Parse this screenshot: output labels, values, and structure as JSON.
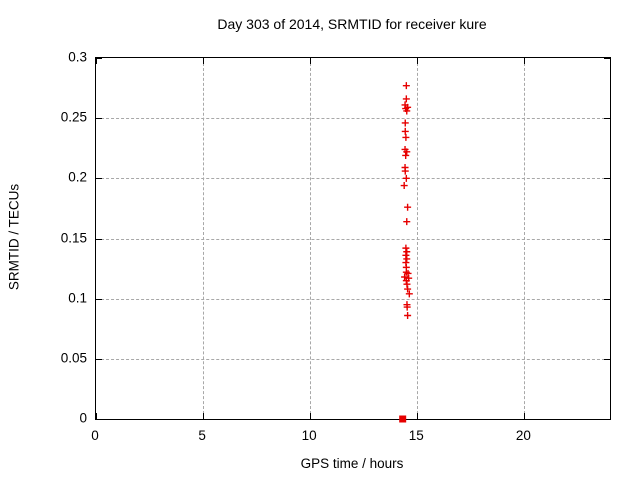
{
  "chart_data": {
    "type": "scatter",
    "title": "Day 303 of 2014, SRMTID for receiver kure",
    "xlabel": "GPS time / hours",
    "ylabel": "SRMTID / TECUs",
    "xlim": [
      0,
      24
    ],
    "ylim": [
      0,
      0.3
    ],
    "xticks": [
      0,
      5,
      10,
      15,
      20
    ],
    "xtick_labels": [
      "0",
      "5",
      "10",
      "15",
      "20"
    ],
    "yticks": [
      0,
      0.05,
      0.1,
      0.15,
      0.2,
      0.25,
      0.3
    ],
    "ytick_labels": [
      "0",
      "0.05",
      "0.1",
      "0.15",
      "0.2",
      "0.25",
      "0.3"
    ],
    "grid": true,
    "legend": "none",
    "colors": {
      "marker": "#e60000",
      "grid": "#a8a8a8",
      "border": "#000000",
      "background": "#ffffff"
    },
    "series": [
      {
        "name": "srmtid-values",
        "marker": "plus",
        "color": "#e60000",
        "points": [
          [
            14.49,
            0.277
          ],
          [
            14.49,
            0.266
          ],
          [
            14.43,
            0.261
          ],
          [
            14.55,
            0.259
          ],
          [
            14.46,
            0.258
          ],
          [
            14.51,
            0.256
          ],
          [
            14.44,
            0.246
          ],
          [
            14.44,
            0.239
          ],
          [
            14.47,
            0.234
          ],
          [
            14.43,
            0.224
          ],
          [
            14.51,
            0.222
          ],
          [
            14.46,
            0.219
          ],
          [
            14.43,
            0.209
          ],
          [
            14.44,
            0.206
          ],
          [
            14.49,
            0.2
          ],
          [
            14.39,
            0.194
          ],
          [
            14.55,
            0.176
          ],
          [
            14.51,
            0.164
          ],
          [
            14.47,
            0.142
          ],
          [
            14.51,
            0.139
          ],
          [
            14.47,
            0.136
          ],
          [
            14.51,
            0.133
          ],
          [
            14.47,
            0.13
          ],
          [
            14.49,
            0.126
          ],
          [
            14.49,
            0.122
          ],
          [
            14.57,
            0.121
          ],
          [
            14.41,
            0.118
          ],
          [
            14.6,
            0.117
          ],
          [
            14.49,
            0.115
          ],
          [
            14.52,
            0.112
          ],
          [
            14.55,
            0.108
          ],
          [
            14.63,
            0.104
          ],
          [
            14.52,
            0.095
          ],
          [
            14.53,
            0.093
          ],
          [
            14.55,
            0.086
          ]
        ]
      },
      {
        "name": "zero-marker",
        "marker": "filled-square",
        "color": "#e60000",
        "points": [
          [
            14.32,
            0.0
          ]
        ]
      }
    ]
  }
}
